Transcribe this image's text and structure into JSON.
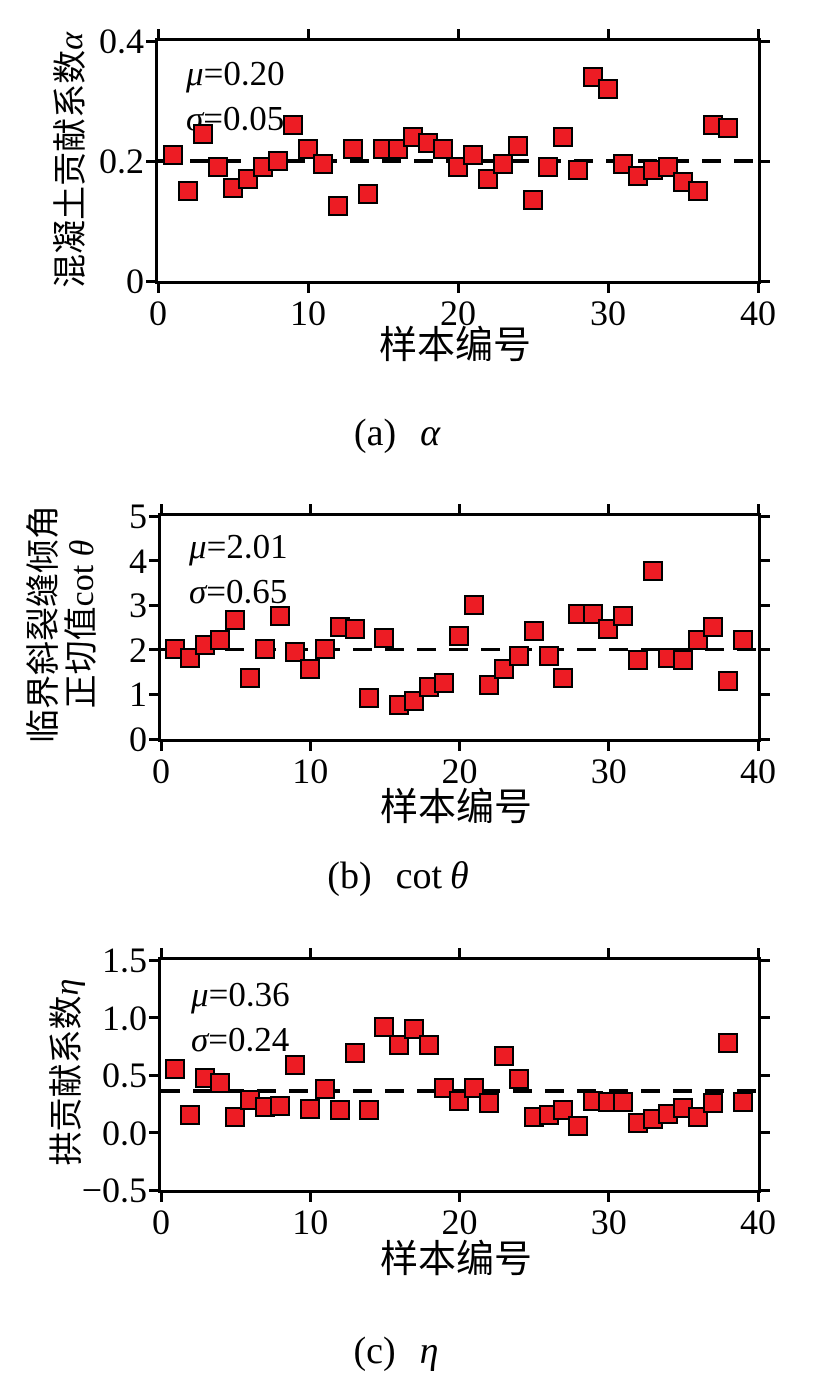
{
  "figure": {
    "background": "#ffffff",
    "marker_fill": "#ED1C24",
    "marker_border": "#000000",
    "mean_line_style": "black dashed"
  },
  "chart_data": [
    {
      "type": "scatter",
      "panel": "a",
      "caption": {
        "prefix": "(a)",
        "roman": "",
        "greek": "α"
      },
      "xlabel": "样本编号",
      "ylabel": {
        "line1": "混凝土贡献系数",
        "line1_greek": "α",
        "line2": "",
        "line2_greek": ""
      },
      "annotation": {
        "mu_symbol": "μ",
        "mu_value": "=0.20",
        "sigma_symbol": "σ",
        "sigma_value": "=0.05"
      },
      "mean": 0.2,
      "std": 0.05,
      "xlim": [
        0,
        40
      ],
      "ylim": [
        0,
        0.4
      ],
      "xticks": [
        0,
        10,
        20,
        30,
        40
      ],
      "xtick_labels": [
        "0",
        "10",
        "20",
        "30",
        "40"
      ],
      "yticks": [
        0,
        0.2,
        0.4
      ],
      "ytick_labels": [
        "0",
        "0.2",
        "0.4"
      ],
      "grid": false,
      "legend": "none",
      "x": [
        1,
        2,
        3,
        4,
        5,
        6,
        7,
        8,
        9,
        10,
        11,
        12,
        13,
        14,
        15,
        16,
        17,
        18,
        19,
        20,
        21,
        22,
        23,
        24,
        25,
        26,
        27,
        28,
        29,
        30,
        31,
        32,
        33,
        34,
        35,
        36,
        37,
        38
      ],
      "y": [
        0.21,
        0.15,
        0.245,
        0.19,
        0.155,
        0.17,
        0.19,
        0.2,
        0.26,
        0.22,
        0.195,
        0.125,
        0.22,
        0.145,
        0.22,
        0.22,
        0.24,
        0.23,
        0.22,
        0.19,
        0.21,
        0.17,
        0.195,
        0.225,
        0.135,
        0.19,
        0.24,
        0.185,
        0.34,
        0.32,
        0.195,
        0.175,
        0.185,
        0.19,
        0.165,
        0.15,
        0.26,
        0.255
      ]
    },
    {
      "type": "scatter",
      "panel": "b",
      "caption": {
        "prefix": "(b)",
        "roman": "cot",
        "greek": "θ"
      },
      "xlabel": "样本编号",
      "ylabel": {
        "line1": "临界斜裂缝倾角",
        "line1_greek": "",
        "line2": "正切值cot ",
        "line2_greek": "θ"
      },
      "annotation": {
        "mu_symbol": "μ",
        "mu_value": "=2.01",
        "sigma_symbol": "σ",
        "sigma_value": "=0.65"
      },
      "mean": 2.01,
      "std": 0.65,
      "xlim": [
        0,
        40
      ],
      "ylim": [
        0,
        5
      ],
      "xticks": [
        0,
        10,
        20,
        30,
        40
      ],
      "xtick_labels": [
        "0",
        "10",
        "20",
        "30",
        "40"
      ],
      "yticks": [
        0,
        1,
        2,
        3,
        4,
        5
      ],
      "ytick_labels": [
        "0",
        "1",
        "2",
        "3",
        "4",
        "5"
      ],
      "grid": false,
      "legend": "none",
      "x": [
        1,
        2,
        3,
        4,
        5,
        6,
        7,
        8,
        9,
        10,
        11,
        12,
        13,
        14,
        15,
        16,
        17,
        18,
        19,
        20,
        21,
        22,
        23,
        24,
        25,
        26,
        27,
        28,
        29,
        30,
        31,
        32,
        33,
        34,
        35,
        36,
        37,
        38,
        39
      ],
      "y": [
        2.0,
        1.8,
        2.1,
        2.2,
        2.65,
        1.35,
        2.0,
        2.75,
        1.95,
        1.55,
        2.0,
        2.5,
        2.45,
        0.9,
        2.25,
        0.75,
        0.85,
        1.15,
        1.25,
        2.3,
        3.0,
        1.2,
        1.55,
        1.85,
        2.4,
        1.85,
        1.35,
        2.8,
        2.8,
        2.45,
        2.75,
        1.75,
        3.75,
        1.8,
        1.75,
        2.2,
        2.5,
        1.3,
        2.2
      ]
    },
    {
      "type": "scatter",
      "panel": "c",
      "caption": {
        "prefix": "(c)",
        "roman": "",
        "greek": "η"
      },
      "xlabel": "样本编号",
      "ylabel": {
        "line1": "拱贡献系数",
        "line1_greek": "η",
        "line2": "",
        "line2_greek": ""
      },
      "annotation": {
        "mu_symbol": "μ",
        "mu_value": "=0.36",
        "sigma_symbol": "σ",
        "sigma_value": "=0.24"
      },
      "mean": 0.36,
      "std": 0.24,
      "xlim": [
        0,
        40
      ],
      "ylim": [
        -0.5,
        1.5
      ],
      "xticks": [
        0,
        10,
        20,
        30,
        40
      ],
      "xtick_labels": [
        "0",
        "10",
        "20",
        "30",
        "40"
      ],
      "yticks": [
        -0.5,
        0.0,
        0.5,
        1.0,
        1.5
      ],
      "ytick_labels": [
        "−0.5",
        "0.0",
        "0.5",
        "1.0",
        "1.5"
      ],
      "grid": false,
      "legend": "none",
      "x": [
        1,
        2,
        3,
        4,
        5,
        6,
        7,
        8,
        9,
        10,
        11,
        12,
        13,
        14,
        15,
        16,
        17,
        18,
        19,
        20,
        21,
        22,
        23,
        24,
        25,
        26,
        27,
        28,
        29,
        30,
        31,
        32,
        33,
        34,
        35,
        36,
        37,
        38,
        39
      ],
      "y": [
        0.55,
        0.15,
        0.47,
        0.43,
        0.13,
        0.28,
        0.22,
        0.23,
        0.58,
        0.2,
        0.37,
        0.19,
        0.69,
        0.19,
        0.91,
        0.76,
        0.9,
        0.76,
        0.38,
        0.27,
        0.38,
        0.25,
        0.66,
        0.46,
        0.13,
        0.15,
        0.19,
        0.05,
        0.27,
        0.26,
        0.26,
        0.08,
        0.11,
        0.16,
        0.21,
        0.13,
        0.25,
        0.77,
        0.26
      ]
    }
  ]
}
